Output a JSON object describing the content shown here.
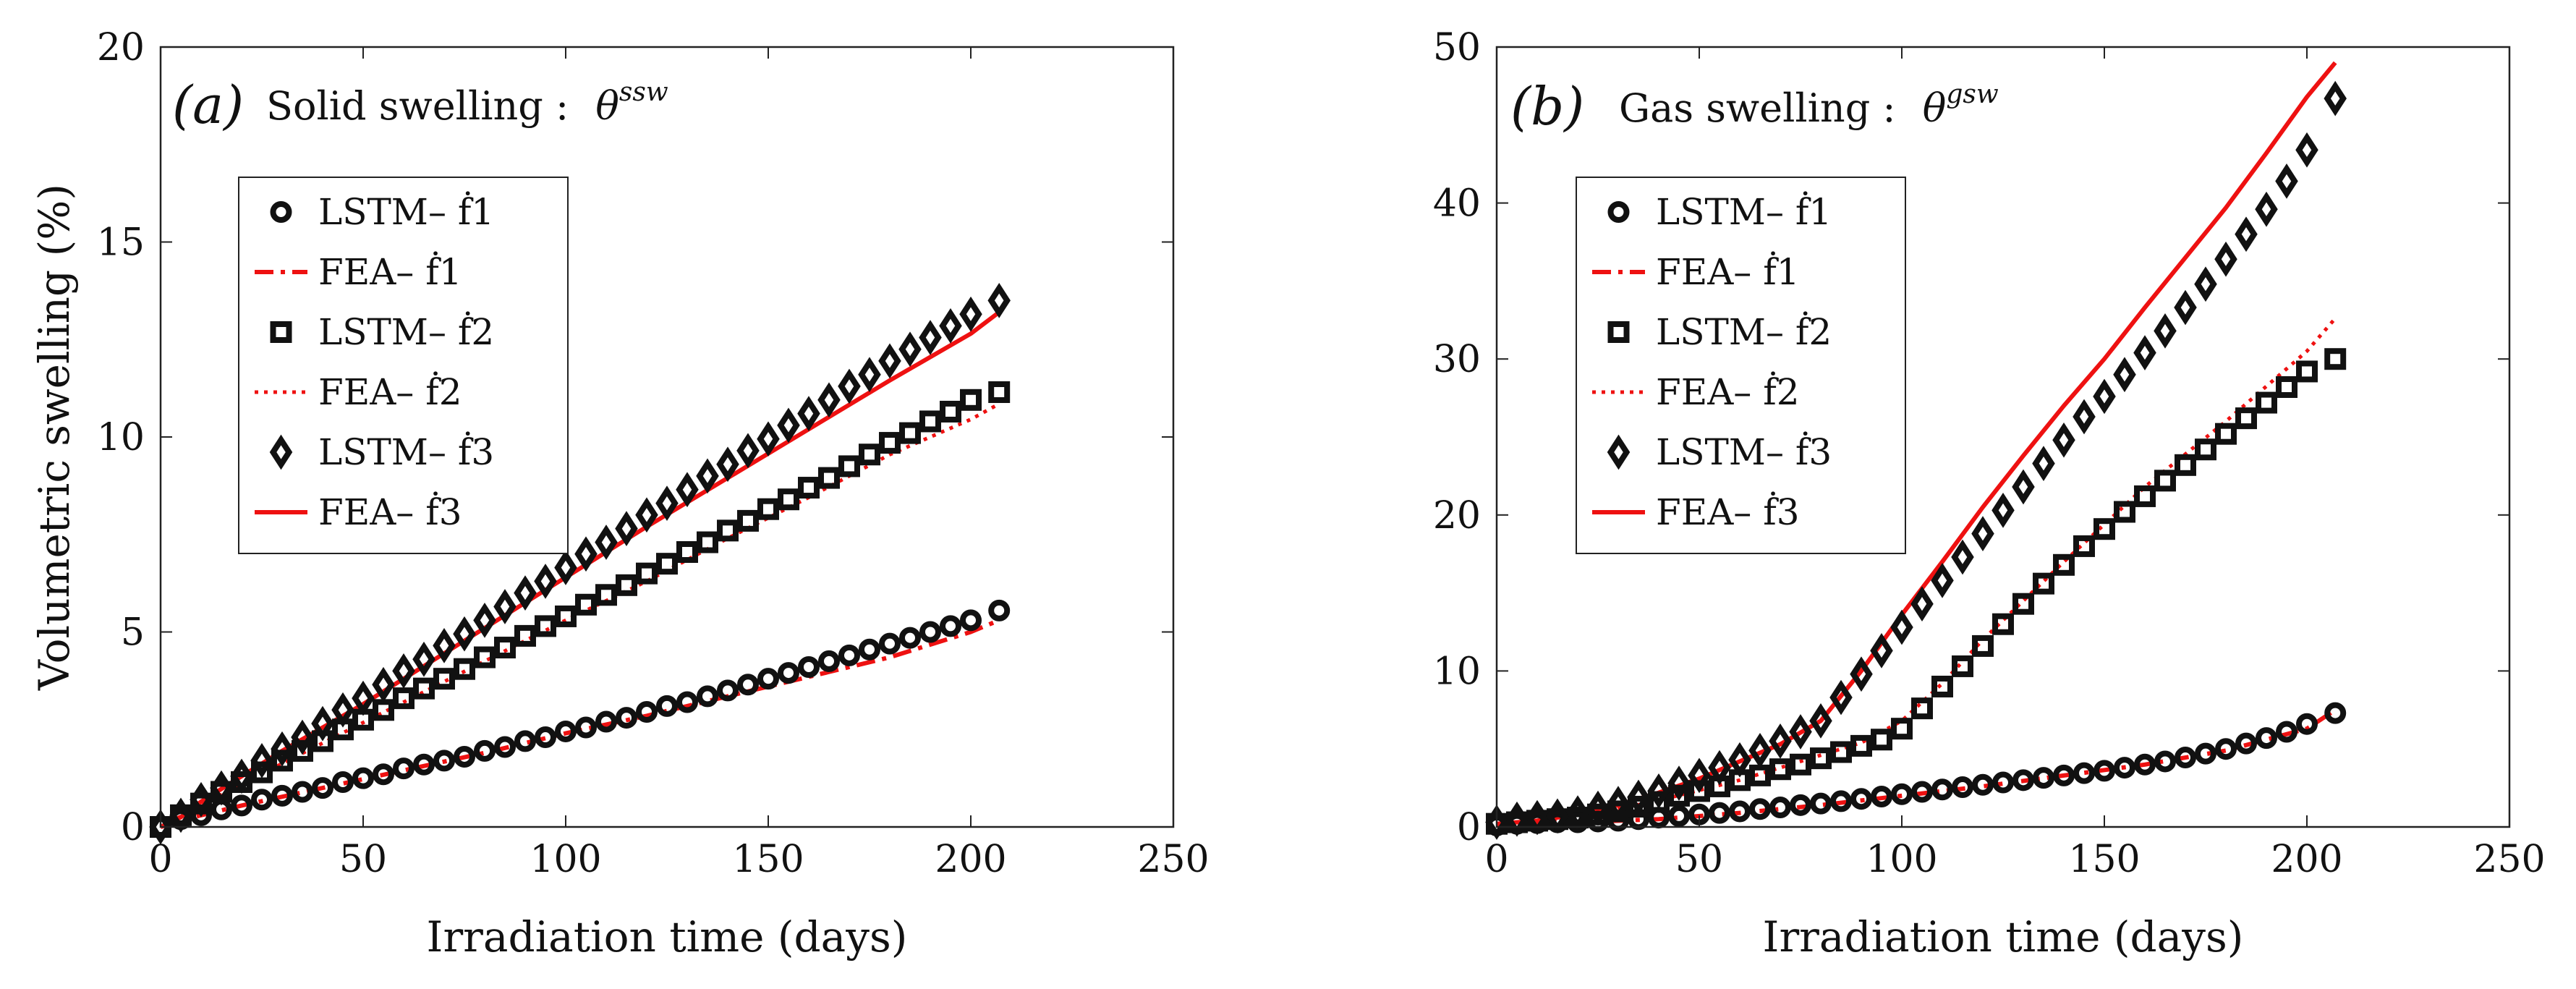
{
  "chart_data": [
    {
      "id": "a",
      "type": "line",
      "panel_label": "(a)",
      "title": "Solid swelling :",
      "title_symbol": "θ",
      "title_superscript": "ssw",
      "xlabel": "Irradiation time (days)",
      "ylabel": "Volumetric swelling (%)",
      "xlim": [
        0,
        250
      ],
      "ylim": [
        0,
        20
      ],
      "xticks": [
        0,
        50,
        100,
        150,
        200,
        250
      ],
      "yticks": [
        0,
        5,
        10,
        15,
        20
      ],
      "legend_position": "upper-left",
      "series": [
        {
          "name": "LSTM– ḟ1",
          "style": "marker-circle",
          "x": [
            0,
            5,
            10,
            15,
            20,
            25,
            30,
            35,
            40,
            45,
            50,
            55,
            60,
            65,
            70,
            75,
            80,
            85,
            90,
            95,
            100,
            105,
            110,
            115,
            120,
            125,
            130,
            135,
            140,
            145,
            150,
            155,
            160,
            165,
            170,
            175,
            180,
            185,
            190,
            195,
            200,
            207
          ],
          "y": [
            0,
            0.2,
            0.3,
            0.45,
            0.55,
            0.7,
            0.8,
            0.9,
            1.0,
            1.15,
            1.25,
            1.35,
            1.5,
            1.6,
            1.7,
            1.8,
            1.95,
            2.05,
            2.2,
            2.3,
            2.45,
            2.55,
            2.7,
            2.8,
            2.95,
            3.1,
            3.2,
            3.35,
            3.5,
            3.65,
            3.8,
            3.95,
            4.1,
            4.25,
            4.4,
            4.55,
            4.7,
            4.85,
            5.0,
            5.15,
            5.3,
            5.55
          ]
        },
        {
          "name": "FEA– ḟ1",
          "style": "dashdot",
          "x": [
            0,
            10,
            20,
            40,
            60,
            80,
            100,
            120,
            140,
            160,
            180,
            200,
            207
          ],
          "y": [
            0,
            0.3,
            0.55,
            1.0,
            1.45,
            1.9,
            2.4,
            2.85,
            3.35,
            3.85,
            4.35,
            5.0,
            5.3
          ]
        },
        {
          "name": "LSTM– ḟ2",
          "style": "marker-square",
          "x": [
            0,
            5,
            10,
            15,
            20,
            25,
            30,
            35,
            40,
            45,
            50,
            55,
            60,
            65,
            70,
            75,
            80,
            85,
            90,
            95,
            100,
            105,
            110,
            115,
            120,
            125,
            130,
            135,
            140,
            145,
            150,
            155,
            160,
            165,
            170,
            175,
            180,
            185,
            190,
            195,
            200,
            207
          ],
          "y": [
            0,
            0.3,
            0.6,
            0.9,
            1.15,
            1.4,
            1.7,
            1.95,
            2.2,
            2.5,
            2.75,
            3.0,
            3.3,
            3.55,
            3.8,
            4.05,
            4.35,
            4.6,
            4.9,
            5.15,
            5.4,
            5.7,
            5.95,
            6.2,
            6.5,
            6.75,
            7.05,
            7.3,
            7.6,
            7.85,
            8.15,
            8.4,
            8.7,
            8.95,
            9.25,
            9.55,
            9.85,
            10.1,
            10.4,
            10.65,
            10.95,
            11.15
          ]
        },
        {
          "name": "FEA– ḟ2",
          "style": "dotted",
          "x": [
            0,
            10,
            20,
            40,
            60,
            80,
            100,
            120,
            140,
            160,
            180,
            200,
            207
          ],
          "y": [
            0,
            0.55,
            1.1,
            2.15,
            3.2,
            4.25,
            5.3,
            6.3,
            7.4,
            8.45,
            9.55,
            10.45,
            10.85
          ]
        },
        {
          "name": "LSTM– ḟ3",
          "style": "marker-diamond",
          "x": [
            0,
            5,
            10,
            15,
            20,
            25,
            30,
            35,
            40,
            45,
            50,
            55,
            60,
            65,
            70,
            75,
            80,
            85,
            90,
            95,
            100,
            105,
            110,
            115,
            120,
            125,
            130,
            135,
            140,
            145,
            150,
            155,
            160,
            165,
            170,
            175,
            180,
            185,
            190,
            195,
            200,
            207
          ],
          "y": [
            0,
            0.3,
            0.7,
            1.0,
            1.3,
            1.7,
            2.0,
            2.3,
            2.65,
            3.0,
            3.3,
            3.65,
            4.0,
            4.3,
            4.65,
            4.95,
            5.3,
            5.65,
            6.0,
            6.3,
            6.65,
            7.0,
            7.3,
            7.65,
            8.0,
            8.3,
            8.65,
            9.0,
            9.3,
            9.65,
            9.95,
            10.3,
            10.6,
            10.95,
            11.3,
            11.6,
            11.95,
            12.25,
            12.55,
            12.85,
            13.15,
            13.5
          ]
        },
        {
          "name": "FEA– ḟ3",
          "style": "solid",
          "x": [
            0,
            5,
            10,
            20,
            30,
            40,
            50,
            60,
            80,
            100,
            120,
            140,
            160,
            180,
            200,
            207
          ],
          "y": [
            0,
            0.25,
            0.65,
            1.3,
            1.95,
            2.55,
            3.15,
            3.8,
            5.1,
            6.4,
            7.7,
            8.95,
            10.2,
            11.45,
            12.65,
            13.2
          ]
        }
      ]
    },
    {
      "id": "b",
      "type": "line",
      "panel_label": "(b)",
      "title": "Gas swelling :",
      "title_symbol": "θ",
      "title_superscript": "gsw",
      "xlabel": "Irradiation time (days)",
      "ylabel": "",
      "xlim": [
        0,
        250
      ],
      "ylim": [
        0,
        50
      ],
      "xticks": [
        0,
        50,
        100,
        150,
        200,
        250
      ],
      "yticks": [
        0,
        10,
        20,
        30,
        40,
        50
      ],
      "legend_position": "upper-left",
      "series": [
        {
          "name": "LSTM– ḟ1",
          "style": "marker-circle",
          "x": [
            0,
            5,
            10,
            15,
            20,
            25,
            30,
            35,
            40,
            45,
            50,
            55,
            60,
            65,
            70,
            75,
            80,
            85,
            90,
            95,
            100,
            105,
            110,
            115,
            120,
            125,
            130,
            135,
            140,
            145,
            150,
            155,
            160,
            165,
            170,
            175,
            180,
            185,
            190,
            195,
            200,
            207
          ],
          "y": [
            0.1,
            0.2,
            0.25,
            0.3,
            0.3,
            0.35,
            0.4,
            0.5,
            0.6,
            0.7,
            0.8,
            0.9,
            1.0,
            1.15,
            1.25,
            1.4,
            1.5,
            1.65,
            1.8,
            1.95,
            2.1,
            2.25,
            2.4,
            2.55,
            2.7,
            2.85,
            3.0,
            3.15,
            3.3,
            3.45,
            3.6,
            3.8,
            4.0,
            4.2,
            4.45,
            4.7,
            5.0,
            5.35,
            5.7,
            6.1,
            6.6,
            7.3
          ]
        },
        {
          "name": "FEA– ḟ1",
          "style": "dashdot",
          "x": [
            0,
            20,
            40,
            60,
            80,
            100,
            120,
            140,
            160,
            180,
            200,
            207
          ],
          "y": [
            0.1,
            0.3,
            0.5,
            0.9,
            1.4,
            2.0,
            2.6,
            3.3,
            4.0,
            4.9,
            6.3,
            7.5
          ]
        },
        {
          "name": "LSTM– ḟ2",
          "style": "marker-square",
          "x": [
            0,
            5,
            10,
            15,
            20,
            25,
            30,
            35,
            40,
            45,
            50,
            55,
            60,
            65,
            70,
            75,
            80,
            85,
            90,
            95,
            100,
            105,
            110,
            115,
            120,
            125,
            130,
            135,
            140,
            145,
            150,
            155,
            160,
            165,
            170,
            175,
            180,
            185,
            190,
            195,
            200,
            207
          ],
          "y": [
            0.2,
            0.3,
            0.4,
            0.5,
            0.6,
            0.8,
            1.0,
            1.3,
            1.6,
            2.0,
            2.3,
            2.6,
            3.0,
            3.3,
            3.7,
            4.0,
            4.4,
            4.8,
            5.2,
            5.6,
            6.3,
            7.6,
            9.0,
            10.3,
            11.6,
            13.0,
            14.3,
            15.6,
            16.8,
            18.0,
            19.1,
            20.2,
            21.2,
            22.2,
            23.2,
            24.2,
            25.2,
            26.2,
            27.2,
            28.2,
            29.2,
            30.0
          ]
        },
        {
          "name": "FEA– ḟ2",
          "style": "dotted",
          "x": [
            0,
            20,
            40,
            60,
            80,
            90,
            100,
            110,
            120,
            140,
            160,
            180,
            200,
            207
          ],
          "y": [
            0.2,
            0.6,
            1.7,
            3.0,
            4.6,
            5.4,
            6.8,
            9.2,
            12.0,
            17.0,
            21.8,
            26.0,
            30.5,
            32.6
          ]
        },
        {
          "name": "LSTM– ḟ3",
          "style": "marker-diamond",
          "x": [
            0,
            5,
            10,
            15,
            20,
            25,
            30,
            35,
            40,
            45,
            50,
            55,
            60,
            65,
            70,
            75,
            80,
            85,
            90,
            95,
            100,
            105,
            110,
            115,
            120,
            125,
            130,
            135,
            140,
            145,
            150,
            155,
            160,
            165,
            170,
            175,
            180,
            185,
            190,
            195,
            200,
            207
          ],
          "y": [
            0.3,
            0.5,
            0.6,
            0.7,
            0.9,
            1.2,
            1.5,
            1.9,
            2.3,
            2.8,
            3.3,
            3.8,
            4.3,
            4.9,
            5.5,
            6.1,
            6.8,
            8.3,
            9.8,
            11.3,
            12.8,
            14.3,
            15.8,
            17.3,
            18.8,
            20.3,
            21.8,
            23.3,
            24.8,
            26.3,
            27.6,
            29.0,
            30.4,
            31.8,
            33.3,
            34.8,
            36.4,
            38.0,
            39.6,
            41.4,
            43.4,
            46.7
          ]
        },
        {
          "name": "FEA– ḟ3",
          "style": "solid",
          "x": [
            0,
            10,
            20,
            30,
            40,
            50,
            60,
            70,
            80,
            90,
            100,
            110,
            120,
            130,
            140,
            150,
            160,
            170,
            180,
            190,
            200,
            207
          ],
          "y": [
            0.2,
            0.4,
            0.8,
            1.4,
            2.2,
            3.1,
            4.2,
            5.3,
            6.8,
            10.0,
            13.6,
            17.0,
            20.5,
            23.8,
            27.0,
            30.0,
            33.3,
            36.5,
            39.7,
            43.2,
            46.8,
            49.0
          ]
        }
      ]
    }
  ]
}
